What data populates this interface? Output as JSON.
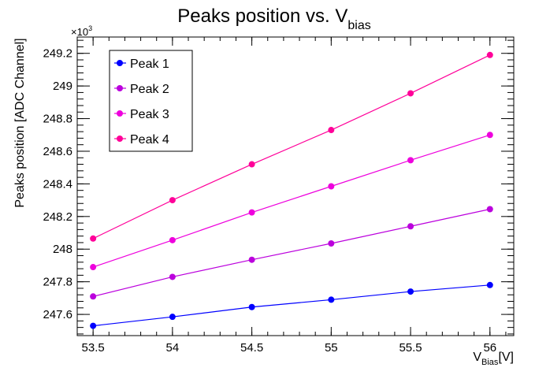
{
  "chart_data": {
    "type": "line",
    "title": {
      "main": "Peaks position vs. V",
      "sub": "bias"
    },
    "xlabel": {
      "main": "V",
      "sub": "Bias",
      "suffix": "[V]"
    },
    "ylabel": "Peaks position [ADC Channel]",
    "y_multiplier": {
      "base": "×10",
      "exp": "3"
    },
    "xlim": [
      53.4,
      56.15
    ],
    "ylim": [
      247.47,
      249.3
    ],
    "x_ticks": [
      53.5,
      54,
      54.5,
      55,
      55.5,
      56
    ],
    "x_tick_labels": [
      "53.5",
      "54",
      "54.5",
      "55",
      "55.5",
      "56"
    ],
    "y_ticks": [
      247.6,
      247.8,
      248,
      248.2,
      248.4,
      248.6,
      248.8,
      249,
      249.2
    ],
    "y_tick_labels": [
      "247.6",
      "247.8",
      "248",
      "248.2",
      "248.4",
      "248.6",
      "248.8",
      "249",
      "249.2"
    ],
    "grid": false,
    "legend_position": "top-left",
    "x": [
      53.5,
      54,
      54.5,
      55,
      55.5,
      56
    ],
    "series": [
      {
        "name": "Peak 1",
        "color": "#0000ff",
        "values": [
          247.53,
          247.585,
          247.645,
          247.69,
          247.74,
          247.78
        ]
      },
      {
        "name": "Peak 2",
        "color": "#bb00dd",
        "values": [
          247.71,
          247.83,
          247.935,
          248.035,
          248.14,
          248.245
        ]
      },
      {
        "name": "Peak 3",
        "color": "#ee00dd",
        "values": [
          247.89,
          248.055,
          248.225,
          248.385,
          248.545,
          248.7
        ]
      },
      {
        "name": "Peak 4",
        "color": "#ff0099",
        "values": [
          248.065,
          248.3,
          248.52,
          248.73,
          248.955,
          249.19
        ]
      }
    ]
  }
}
